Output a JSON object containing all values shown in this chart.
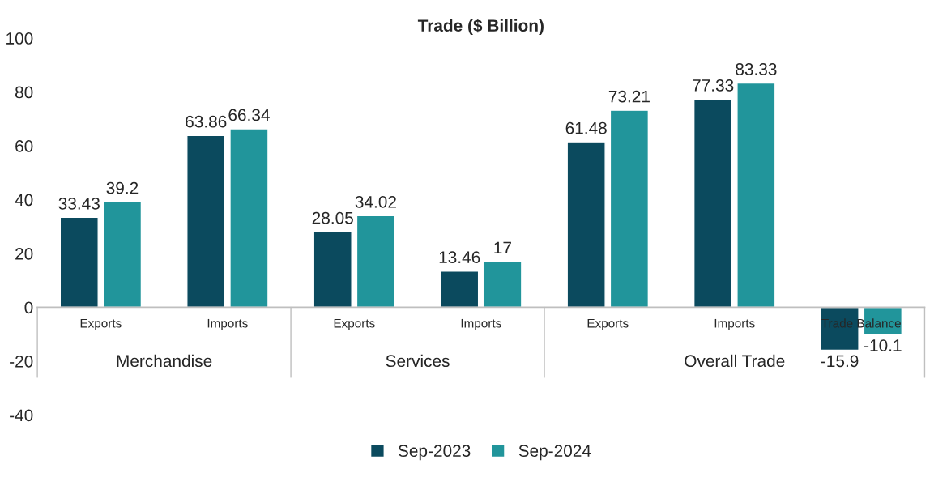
{
  "chart_data": {
    "type": "bar",
    "title": "Trade ($ Billion)",
    "categories": [
      "Exports",
      "Imports",
      "Exports",
      "Imports",
      "Exports",
      "Imports",
      "Trade Balance"
    ],
    "series": [
      {
        "name": "Sep-2023",
        "color": "#0b4a5e",
        "values": [
          33.43,
          63.86,
          28.05,
          13.46,
          61.48,
          77.33,
          -15.9
        ]
      },
      {
        "name": "Sep-2024",
        "color": "#21959b",
        "values": [
          39.2,
          66.34,
          34.02,
          17,
          73.21,
          83.33,
          -10.1
        ]
      }
    ],
    "annotations": [
      "Merchandise",
      "Services",
      "Overall Trade"
    ],
    "ylim": [
      -40,
      100
    ],
    "yticks": [
      -40,
      -20,
      0,
      20,
      40,
      60,
      80,
      100
    ],
    "grid": false,
    "legend": "bottom",
    "data_labels": true
  }
}
